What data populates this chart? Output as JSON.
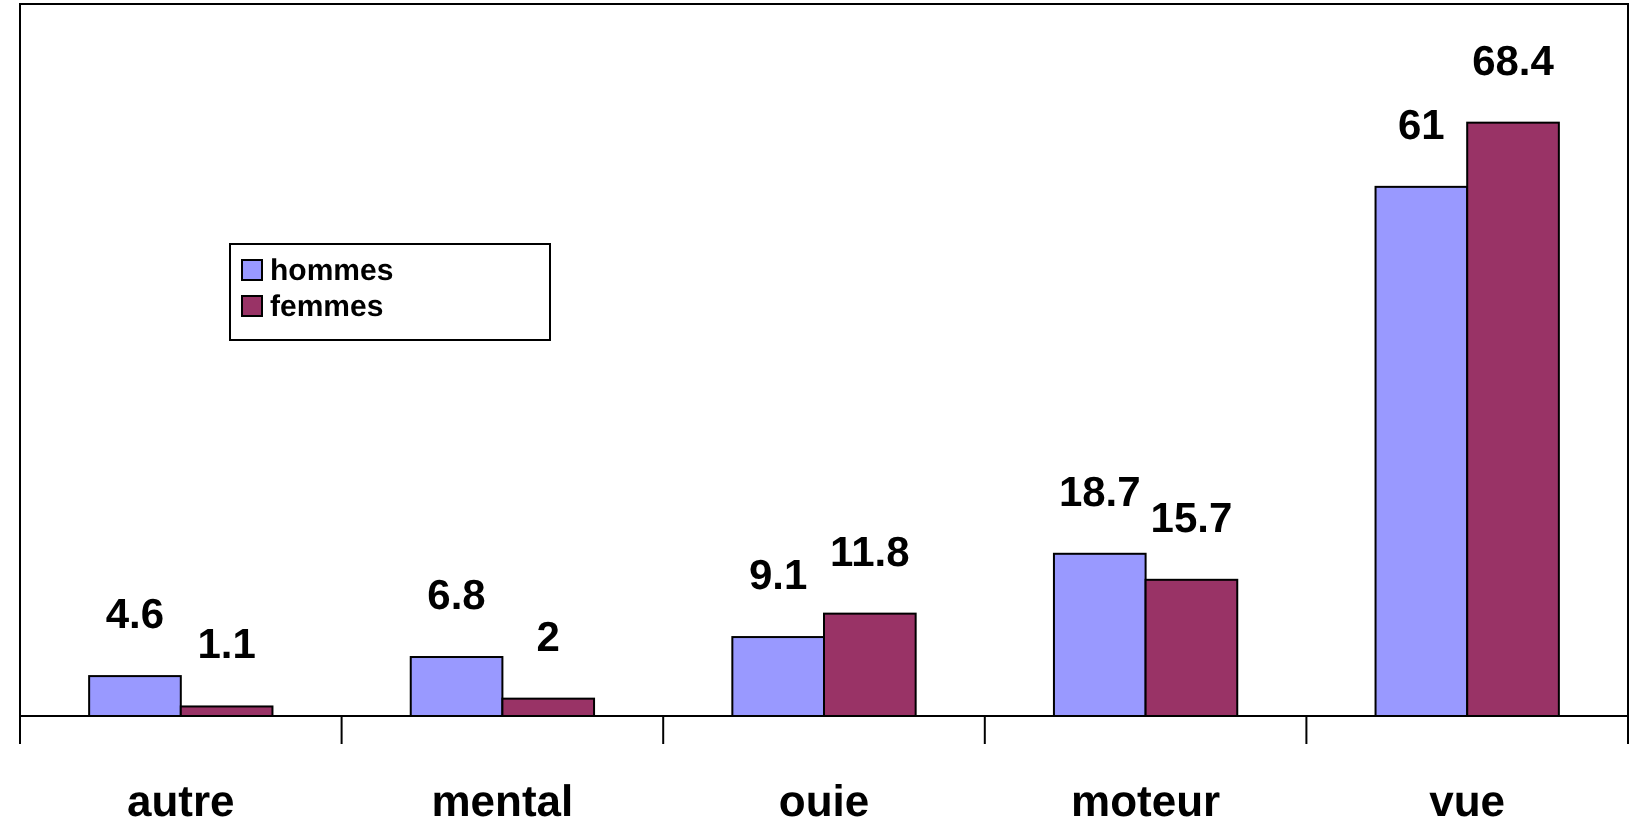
{
  "chart_data": {
    "type": "bar",
    "categories": [
      "autre",
      "mental",
      "ouie",
      "moteur",
      "vue"
    ],
    "series": [
      {
        "name": "hommes",
        "color": "#9999ff",
        "values": [
          4.6,
          6.8,
          9.1,
          18.7,
          61
        ]
      },
      {
        "name": "femmes",
        "color": "#993366",
        "values": [
          1.1,
          2,
          11.8,
          15.7,
          68.4
        ]
      }
    ],
    "data_labels": true,
    "legend": "top left"
  }
}
